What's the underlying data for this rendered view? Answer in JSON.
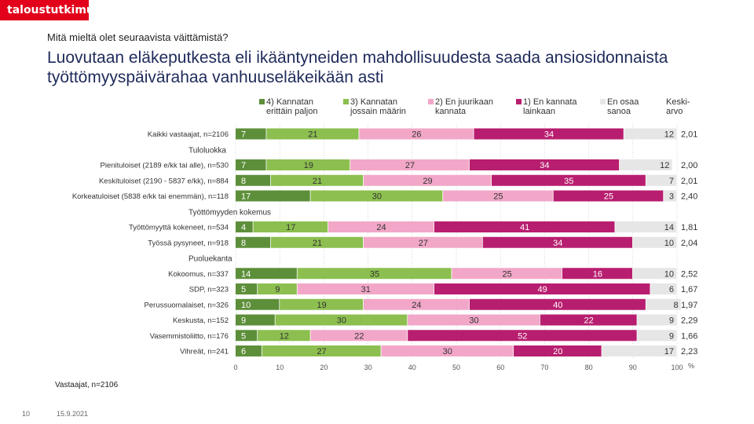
{
  "brand": {
    "logo_text": "taloustutkimus"
  },
  "header": {
    "question": "Mitä mieltä olet seuraavista väittämistä?",
    "title": "Luovutaan eläkeputkesta eli ikääntyneiden mahdollisuudesta saada ansiosidonnaista työttömyyspäivärahaa vanhuuseläkeikään asti"
  },
  "footer": {
    "note": "Vastaajat, n=2106",
    "page": "10",
    "date": "15.9.2021"
  },
  "colors": {
    "s1": "#5d8f3a",
    "s2": "#8cbf4f",
    "s3": "#f2a7c8",
    "s4": "#b81e6f",
    "s5": "#e6e6e6",
    "text_light": "#ffffff",
    "text_dark": "#333333",
    "grid": "#bdbdbd"
  },
  "chart_data": {
    "type": "bar",
    "orientation": "horizontal",
    "stacked": true,
    "xlim": [
      0,
      100
    ],
    "xticks": [
      0,
      10,
      20,
      30,
      40,
      50,
      60,
      70,
      80,
      90,
      100
    ],
    "x_unit": "%",
    "legend_position": "top",
    "mean_header": "Keski-\narvo",
    "series": [
      {
        "name": "4) Kannatan\nerittäin paljon",
        "color_key": "s1"
      },
      {
        "name": "3) Kannatan\njossain määrin",
        "color_key": "s2"
      },
      {
        "name": "2) En juurikaan\nkannata",
        "color_key": "s3"
      },
      {
        "name": "1) En kannata\nlainkaan",
        "color_key": "s4"
      },
      {
        "name": "En osaa\nsanoa",
        "color_key": "s5"
      }
    ],
    "rows": [
      {
        "label": "Kaikki vastaajat, n=2106",
        "values": [
          7,
          21,
          26,
          34,
          12
        ],
        "mean": "2,01"
      },
      {
        "group": "Tuloluokka"
      },
      {
        "label": "Pienituloiset (2189 e/kk tai alle), n=530",
        "values": [
          7,
          19,
          27,
          34,
          12
        ],
        "mean": "2,00"
      },
      {
        "label": "Keskituloiset (2190 - 5837 e/kk), n=884",
        "values": [
          8,
          21,
          29,
          35,
          7
        ],
        "mean": "2,01"
      },
      {
        "label": "Korkeatuloiset (5838 e/kk tai enemmän), n=118",
        "values": [
          17,
          30,
          25,
          25,
          3
        ],
        "mean": "2,40"
      },
      {
        "group": "Työttömyyden kokemus"
      },
      {
        "label": "Työttömyyttä kokeneet, n=534",
        "values": [
          4,
          17,
          24,
          41,
          14
        ],
        "mean": "1,81"
      },
      {
        "label": "Työssä pysyneet, n=918",
        "values": [
          8,
          21,
          27,
          34,
          10
        ],
        "mean": "2,04"
      },
      {
        "group": "Puoluekanta"
      },
      {
        "label": "Kokoomus, n=337",
        "values": [
          14,
          35,
          25,
          16,
          10
        ],
        "mean": "2,52"
      },
      {
        "label": "SDP, n=323",
        "values": [
          5,
          9,
          31,
          49,
          6
        ],
        "mean": "1,67"
      },
      {
        "label": "Perussuomalaiset, n=326",
        "values": [
          10,
          19,
          24,
          40,
          8
        ],
        "mean": "1,97"
      },
      {
        "label": "Keskusta, n=152",
        "values": [
          9,
          30,
          30,
          22,
          9
        ],
        "mean": "2,29"
      },
      {
        "label": "Vasemmistoliitto, n=176",
        "values": [
          5,
          12,
          22,
          52,
          9
        ],
        "mean": "1,66"
      },
      {
        "label": "Vihreät, n=241",
        "values": [
          6,
          27,
          30,
          20,
          17
        ],
        "mean": "2,23"
      }
    ]
  }
}
